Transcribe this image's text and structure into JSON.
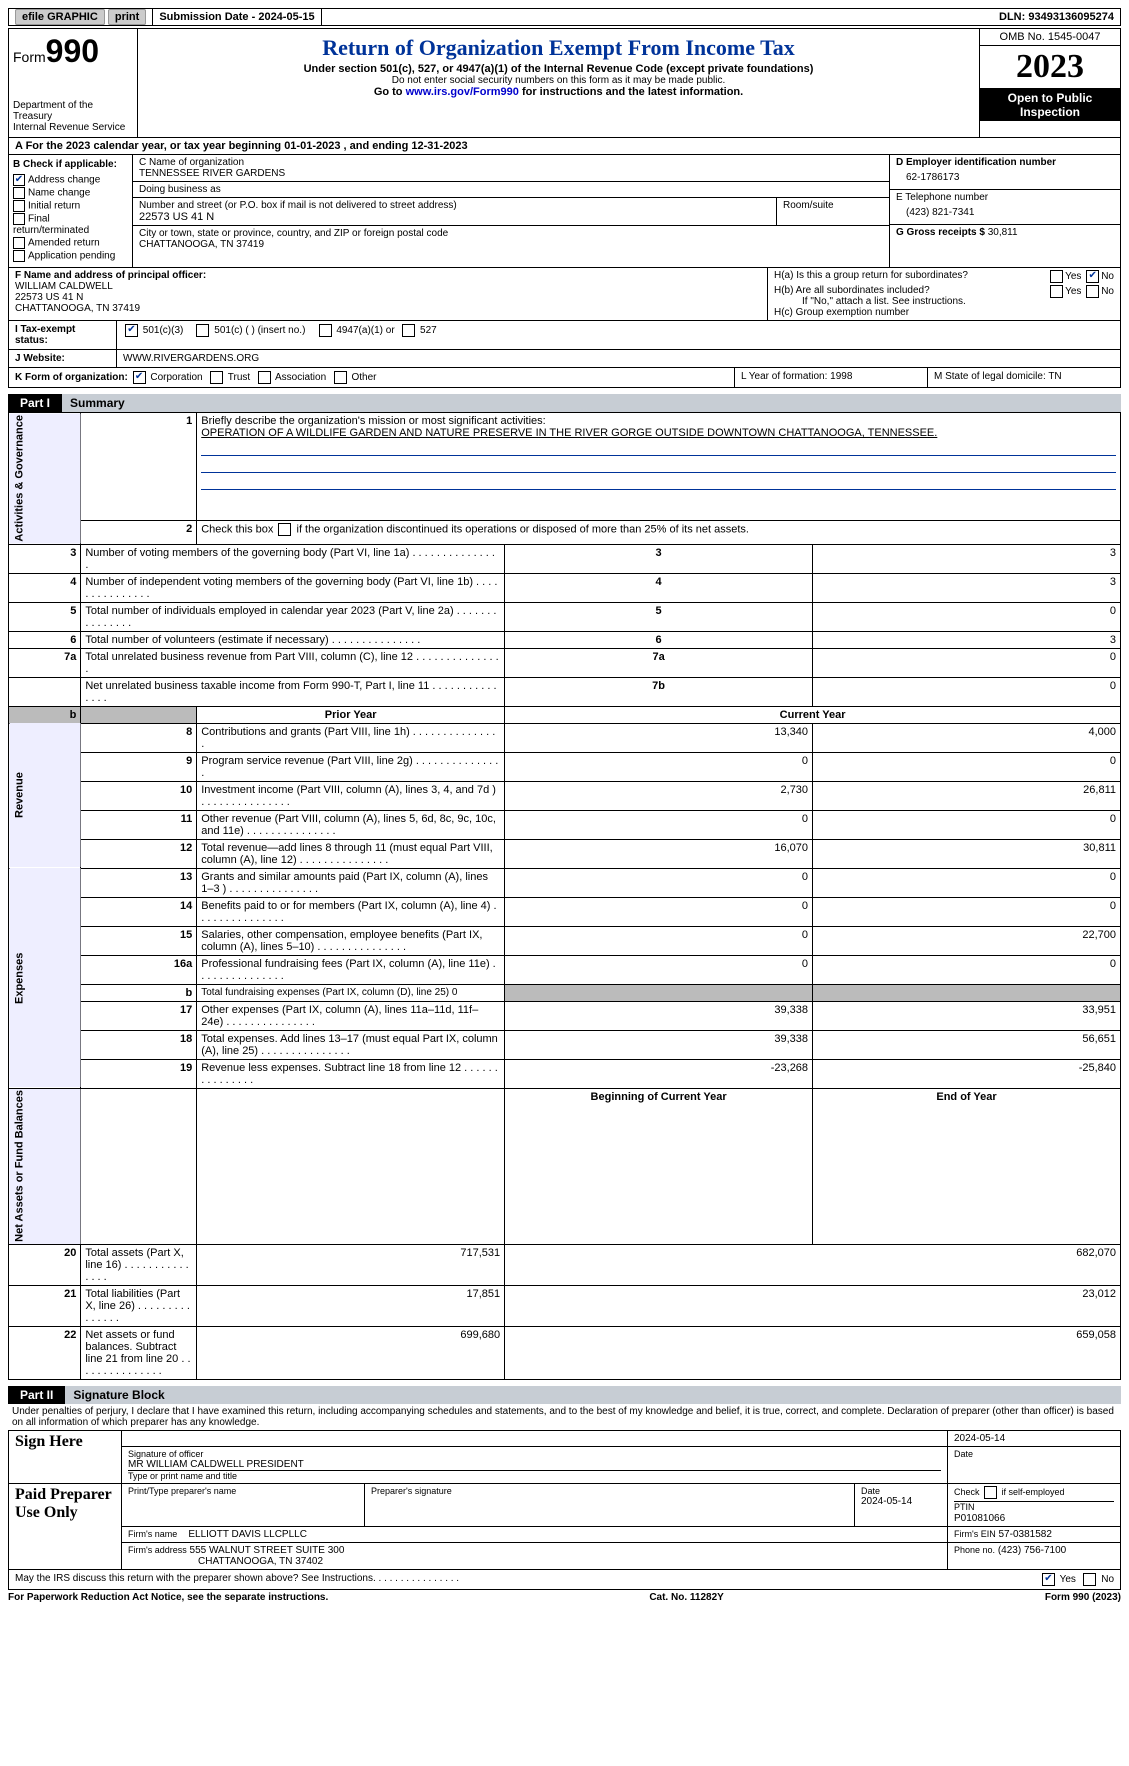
{
  "colors": {
    "link": "#0000cc",
    "title": "#003399",
    "part_bg": "#c7cdd4"
  },
  "topbar": {
    "efile": "efile GRAPHIC",
    "print": "print",
    "submission": "Submission Date - 2024-05-15",
    "dln": "DLN: 93493136095274"
  },
  "header": {
    "form_label": "Form",
    "form_number": "990",
    "dept": "Department of the Treasury\nInternal Revenue Service",
    "title": "Return of Organization Exempt From Income Tax",
    "subtitle": "Under section 501(c), 527, or 4947(a)(1) of the Internal Revenue Code (except private foundations)",
    "warn": "Do not enter social security numbers on this form as it may be made public.",
    "goto_pre": "Go to ",
    "goto_link": "www.irs.gov/Form990",
    "goto_post": " for instructions and the latest information.",
    "omb": "OMB No. 1545-0047",
    "year": "2023",
    "open": "Open to Public Inspection"
  },
  "lineA": "A For the 2023 calendar year, or tax year beginning 01-01-2023    , and ending 12-31-2023",
  "boxB": {
    "label": "B Check if applicable:",
    "items": [
      {
        "label": "Address change",
        "checked": true
      },
      {
        "label": "Name change",
        "checked": false
      },
      {
        "label": "Initial return",
        "checked": false
      },
      {
        "label": "Final return/terminated",
        "checked": false
      },
      {
        "label": "Amended return",
        "checked": false
      },
      {
        "label": "Application pending",
        "checked": false
      }
    ]
  },
  "boxC": {
    "name_label": "C Name of organization",
    "name": "TENNESSEE RIVER GARDENS",
    "dba_label": "Doing business as",
    "dba": "",
    "street_label": "Number and street (or P.O. box if mail is not delivered to street address)",
    "room_label": "Room/suite",
    "street": "22573 US 41 N",
    "city_label": "City or town, state or province, country, and ZIP or foreign postal code",
    "city": "CHATTANOOGA, TN  37419"
  },
  "boxD": {
    "label": "D Employer identification number",
    "value": "62-1786173"
  },
  "boxE": {
    "label": "E Telephone number",
    "value": "(423) 821-7341"
  },
  "boxG": {
    "label": "G Gross receipts $",
    "value": "30,811"
  },
  "boxF": {
    "label": "F  Name and address of principal officer:",
    "name": "WILLIAM CALDWELL",
    "addr1": "22573 US 41 N",
    "addr2": "CHATTANOOGA, TN  37419"
  },
  "boxH": {
    "a_label": "H(a)  Is this a group return for subordinates?",
    "a_yes": false,
    "a_no": true,
    "b_label": "H(b)  Are all subordinates included?",
    "b_note": "If \"No,\" attach a list. See instructions.",
    "c_label": "H(c)  Group exemption number",
    "c_value": ""
  },
  "taxExempt": {
    "label": "I   Tax-exempt status:",
    "c3_checked": true,
    "opts": {
      "c3": "501(c)(3)",
      "c_other": "501(c) (  ) (insert no.)",
      "a1": "4947(a)(1) or",
      "527": "527"
    }
  },
  "website": {
    "label": "J   Website:",
    "value": "WWW.RIVERGARDENS.ORG"
  },
  "rowK": {
    "label": "K Form of organization:",
    "corp_checked": true,
    "opts": [
      "Corporation",
      "Trust",
      "Association",
      "Other"
    ],
    "L": "L Year of formation: 1998",
    "M": "M State of legal domicile: TN"
  },
  "part1": {
    "tab": "Part I",
    "title": "Summary",
    "mission_label": "Briefly describe the organization's mission or most significant activities:",
    "mission": "OPERATION OF A WILDLIFE GARDEN AND NATURE PRESERVE IN THE RIVER GORGE OUTSIDE DOWNTOWN CHATTANOOGA, TENNESSEE.",
    "line2": "Check this box          if the organization discontinued its operations or disposed of more than 25% of its net assets.",
    "governance_rows": [
      {
        "n": "3",
        "desc": "Number of voting members of the governing body (Part VI, line 1a)",
        "box": "3",
        "val": "3"
      },
      {
        "n": "4",
        "desc": "Number of independent voting members of the governing body (Part VI, line 1b)",
        "box": "4",
        "val": "3"
      },
      {
        "n": "5",
        "desc": "Total number of individuals employed in calendar year 2023 (Part V, line 2a)",
        "box": "5",
        "val": "0"
      },
      {
        "n": "6",
        "desc": "Total number of volunteers (estimate if necessary)",
        "box": "6",
        "val": "3"
      },
      {
        "n": "7a",
        "desc": "Total unrelated business revenue from Part VIII, column (C), line 12",
        "box": "7a",
        "val": "0"
      },
      {
        "n": "",
        "desc": "Net unrelated business taxable income from Form 990-T, Part I, line 11",
        "box": "7b",
        "val": "0"
      }
    ],
    "col_headers": {
      "prior": "Prior Year",
      "current": "Current Year"
    },
    "revenue_rows": [
      {
        "n": "8",
        "desc": "Contributions and grants (Part VIII, line 1h)",
        "prior": "13,340",
        "cur": "4,000"
      },
      {
        "n": "9",
        "desc": "Program service revenue (Part VIII, line 2g)",
        "prior": "0",
        "cur": "0"
      },
      {
        "n": "10",
        "desc": "Investment income (Part VIII, column (A), lines 3, 4, and 7d )",
        "prior": "2,730",
        "cur": "26,811"
      },
      {
        "n": "11",
        "desc": "Other revenue (Part VIII, column (A), lines 5, 6d, 8c, 9c, 10c, and 11e)",
        "prior": "0",
        "cur": "0"
      },
      {
        "n": "12",
        "desc": "Total revenue—add lines 8 through 11 (must equal Part VIII, column (A), line 12)",
        "prior": "16,070",
        "cur": "30,811"
      }
    ],
    "expense_rows": [
      {
        "n": "13",
        "desc": "Grants and similar amounts paid (Part IX, column (A), lines 1–3 )",
        "prior": "0",
        "cur": "0"
      },
      {
        "n": "14",
        "desc": "Benefits paid to or for members (Part IX, column (A), line 4)",
        "prior": "0",
        "cur": "0"
      },
      {
        "n": "15",
        "desc": "Salaries, other compensation, employee benefits (Part IX, column (A), lines 5–10)",
        "prior": "0",
        "cur": "22,700"
      },
      {
        "n": "16a",
        "desc": "Professional fundraising fees (Part IX, column (A), line 11e)",
        "prior": "0",
        "cur": "0"
      },
      {
        "n": "b",
        "desc": "Total fundraising expenses (Part IX, column (D), line 25) 0",
        "prior": "",
        "cur": "",
        "grey": true
      },
      {
        "n": "17",
        "desc": "Other expenses (Part IX, column (A), lines 11a–11d, 11f–24e)",
        "prior": "39,338",
        "cur": "33,951"
      },
      {
        "n": "18",
        "desc": "Total expenses. Add lines 13–17 (must equal Part IX, column (A), line 25)",
        "prior": "39,338",
        "cur": "56,651"
      },
      {
        "n": "19",
        "desc": "Revenue less expenses. Subtract line 18 from line 12",
        "prior": "-23,268",
        "cur": "-25,840"
      }
    ],
    "net_headers": {
      "begin": "Beginning of Current Year",
      "end": "End of Year"
    },
    "net_rows": [
      {
        "n": "20",
        "desc": "Total assets (Part X, line 16)",
        "prior": "717,531",
        "cur": "682,070"
      },
      {
        "n": "21",
        "desc": "Total liabilities (Part X, line 26)",
        "prior": "17,851",
        "cur": "23,012"
      },
      {
        "n": "22",
        "desc": "Net assets or fund balances. Subtract line 21 from line 20",
        "prior": "699,680",
        "cur": "659,058"
      }
    ],
    "vlabels": {
      "gov": "Activities & Governance",
      "rev": "Revenue",
      "exp": "Expenses",
      "net": "Net Assets or Fund Balances"
    }
  },
  "part2": {
    "tab": "Part II",
    "title": "Signature Block",
    "penalty": "Under penalties of perjury, I declare that I have examined this return, including accompanying schedules and statements, and to the best of my knowledge and belief, it is true, correct, and complete. Declaration of preparer (other than officer) is based on all information of which preparer has any knowledge.",
    "sign_here": "Sign Here",
    "sig_officer_label": "Signature of officer",
    "sig_date": "2024-05-14",
    "officer": "MR WILLIAM CALDWELL  PRESIDENT",
    "type_label": "Type or print name and title",
    "date_label": "Date",
    "paid": "Paid Preparer Use Only",
    "prep_name_label": "Print/Type preparer's name",
    "prep_sig_label": "Preparer's signature",
    "prep_date": "2024-05-14",
    "self_emp": "Check        if self-employed",
    "ptin_label": "PTIN",
    "ptin": "P01081066",
    "firm_name_label": "Firm's name",
    "firm_name": "ELLIOTT DAVIS LLCPLLC",
    "firm_ein_label": "Firm's EIN",
    "firm_ein": "57-0381582",
    "firm_addr_label": "Firm's address",
    "firm_addr1": "555 WALNUT STREET SUITE 300",
    "firm_addr2": "CHATTANOOGA, TN  37402",
    "phone_label": "Phone no.",
    "phone": "(423) 756-7100",
    "discuss": "May the IRS discuss this return with the preparer shown above? See Instructions.",
    "discuss_yes": true
  },
  "footer": {
    "left": "For Paperwork Reduction Act Notice, see the separate instructions.",
    "mid": "Cat. No. 11282Y",
    "right": "Form 990 (2023)"
  }
}
